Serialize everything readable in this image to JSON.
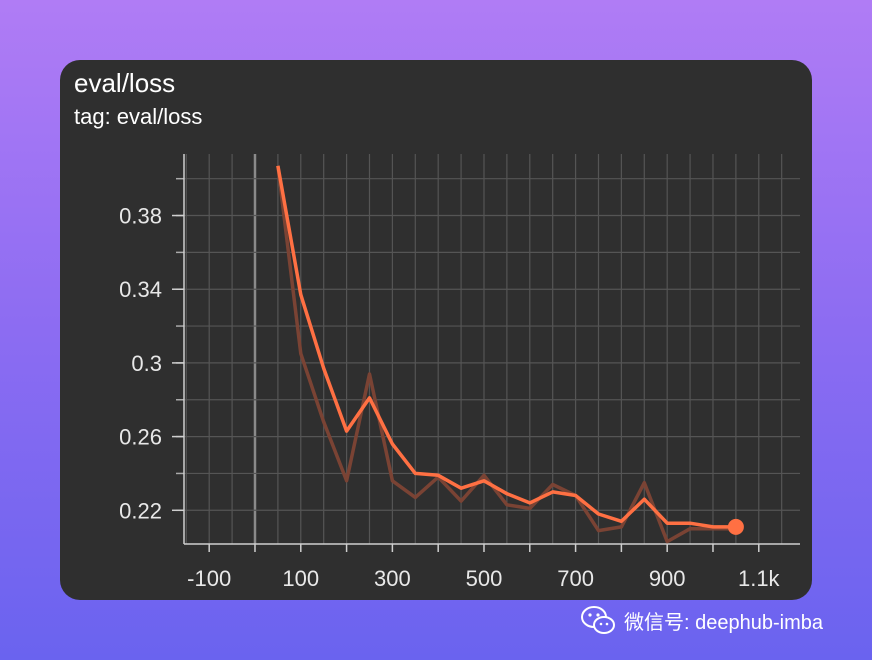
{
  "card": {
    "title": "eval/loss",
    "subtitle": "tag: eval/loss"
  },
  "chart_data": {
    "type": "line",
    "x_tick_labels": [
      "-100",
      "100",
      "300",
      "500",
      "700",
      "900",
      "1.1k"
    ],
    "x_ticks": [
      -100,
      100,
      300,
      500,
      700,
      900,
      1100
    ],
    "y_tick_labels": [
      "0.22",
      "0.26",
      "0.3",
      "0.34",
      "0.38"
    ],
    "y_ticks": [
      0.22,
      0.26,
      0.3,
      0.34,
      0.38
    ],
    "xlim": [
      -155,
      1190
    ],
    "ylim": [
      0.2017,
      0.4134
    ],
    "grid": true,
    "smoothed_color": "#ff7043",
    "raw_color": "#7a4334",
    "series": [
      {
        "x": [
          50,
          100,
          150,
          200,
          250,
          300,
          350,
          400,
          450,
          500,
          550,
          600,
          650,
          700,
          750,
          800,
          850,
          900,
          950,
          1000,
          1050
        ],
        "values": [
          0.407,
          0.305,
          0.268,
          0.236,
          0.294,
          0.236,
          0.227,
          0.238,
          0.225,
          0.239,
          0.223,
          0.221,
          0.234,
          0.228,
          0.209,
          0.211,
          0.235,
          0.203,
          0.21,
          0.21,
          0.21
        ]
      },
      {
        "x": [
          50,
          100,
          150,
          200,
          250,
          300,
          350,
          400,
          450,
          500,
          550,
          600,
          650,
          700,
          750,
          800,
          850,
          900,
          950,
          1000,
          1050
        ],
        "values": [
          0.407,
          0.337,
          0.297,
          0.263,
          0.281,
          0.256,
          0.24,
          0.239,
          0.232,
          0.236,
          0.229,
          0.224,
          0.23,
          0.228,
          0.218,
          0.214,
          0.226,
          0.213,
          0.213,
          0.211,
          0.211
        ]
      }
    ]
  },
  "watermark": {
    "text": "微信号: deephub-imba",
    "icon": "wechat-icon"
  }
}
